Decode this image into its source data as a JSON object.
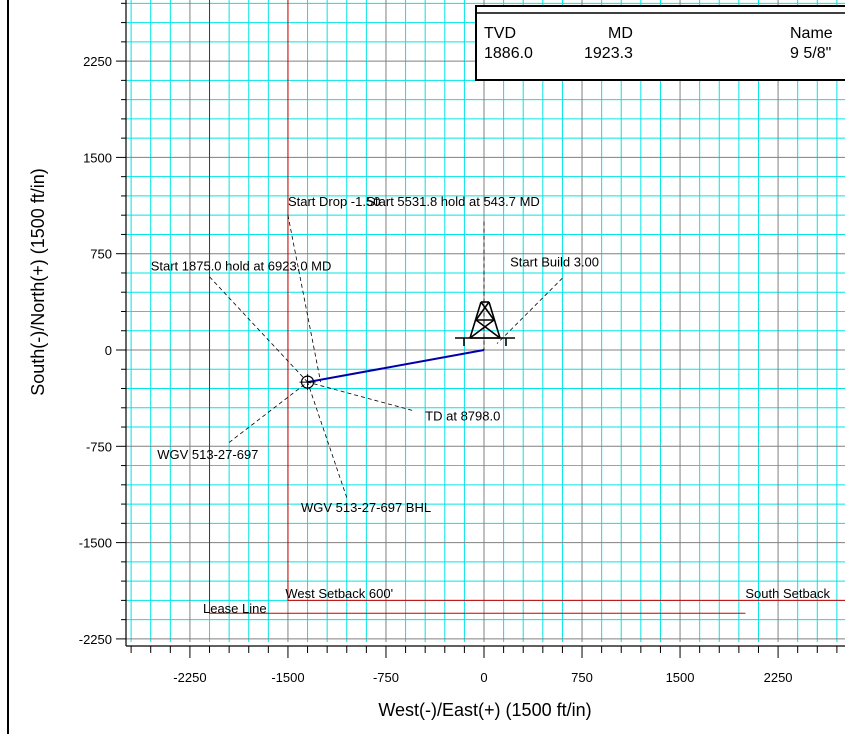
{
  "colors": {
    "minor_grid": "#00e5e5",
    "major_grid": "#808080",
    "lease_line": "#cc0000",
    "setback_line": "#cc0000",
    "wellpath": "#0000aa",
    "leader": "#000000"
  },
  "table": {
    "headers": [
      "TVD",
      "MD",
      "Name"
    ],
    "row": [
      "1886.0",
      "1923.3",
      "9 5/8\""
    ]
  },
  "chart_data": {
    "type": "plan-view",
    "xlabel": "West(-)/East(+)  (1500  ft/in)",
    "ylabel": "South(-)/North(+)  (1500  ft/in)",
    "xlim": [
      -2750,
      2900
    ],
    "ylim": [
      -2300,
      2700
    ],
    "x_ticks": [
      -2250,
      -1500,
      -750,
      0,
      750,
      1500,
      2250
    ],
    "y_ticks": [
      2250,
      1500,
      750,
      0,
      -750,
      -1500,
      -2250
    ],
    "wellpath": [
      [
        0,
        0
      ],
      [
        -1350,
        -250
      ]
    ],
    "target": [
      -1350,
      -250
    ],
    "surface_location": [
      0,
      0
    ],
    "lines": [
      {
        "name": "West Setback 600'",
        "points": [
          [
            -1500,
            3000
          ],
          [
            -1500,
            -1950
          ],
          [
            2850,
            -1950
          ]
        ]
      },
      {
        "name": "Lease Line",
        "points": [
          [
            -2100,
            3000
          ],
          [
            -2100,
            -2050
          ],
          [
            2000,
            -2050
          ]
        ]
      }
    ],
    "annotations": [
      {
        "text": "Start Drop -1.50",
        "text_at": [
          -1500,
          1120
        ],
        "line_from": [
          -1500,
          1050
        ],
        "line_to": [
          -1250,
          -250
        ]
      },
      {
        "text": "Start 5531.8 hold at 543.7 MD",
        "text_at": [
          -900,
          1120
        ],
        "line_from": [
          0,
          1000
        ],
        "line_to": [
          0,
          0
        ]
      },
      {
        "text": "Start Build 3.00",
        "text_at": [
          200,
          650
        ],
        "line_from": [
          600,
          560
        ],
        "line_to": [
          100,
          50
        ]
      },
      {
        "text": "Start 1875.0 hold at 6923.0 MD",
        "text_at": [
          -2550,
          620
        ],
        "line_from": [
          -2100,
          570
        ],
        "line_to": [
          -1350,
          -250
        ]
      },
      {
        "text": "TD at 8798.0",
        "text_at": [
          -450,
          -550
        ],
        "line_from": [
          -550,
          -470
        ],
        "line_to": [
          -1350,
          -250
        ]
      },
      {
        "text": "WGV 513-27-697",
        "text_at": [
          -2500,
          -850
        ],
        "line_from": [
          -1950,
          -720
        ],
        "line_to": [
          -1350,
          -250
        ]
      },
      {
        "text": "WGV 513-27-697 BHL",
        "text_at": [
          -1400,
          -1260
        ],
        "line_from": [
          -1050,
          -1150
        ],
        "line_to": [
          -1350,
          -250
        ]
      },
      {
        "text": "West Setback 600'",
        "text_at": [
          -1520,
          -1930
        ]
      },
      {
        "text": "South Setback",
        "text_at": [
          2000,
          -1930
        ]
      },
      {
        "text": "Lease Line",
        "text_at": [
          -2150,
          -2050
        ]
      }
    ]
  }
}
